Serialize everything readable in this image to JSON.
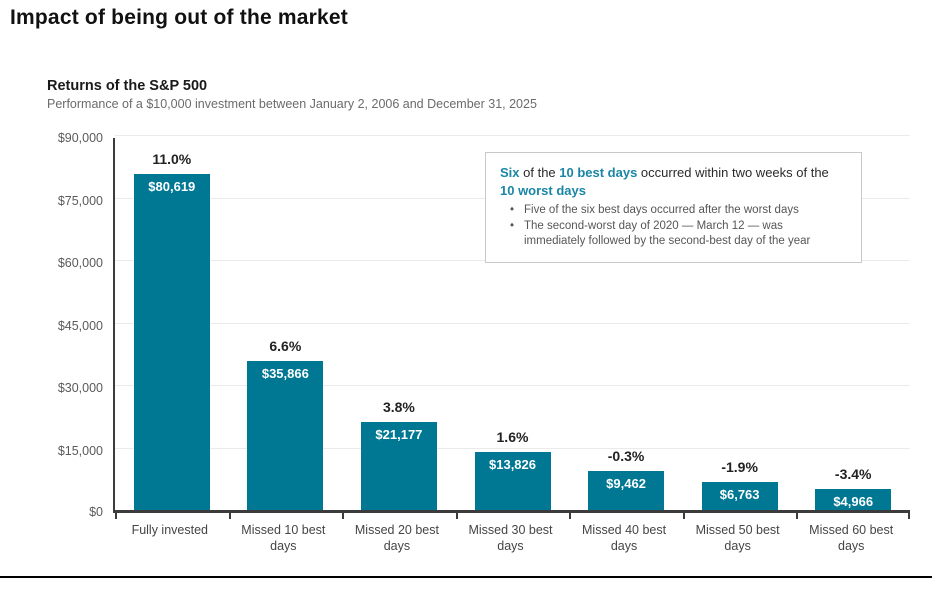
{
  "page_title": "Impact of being out of the market",
  "chart": {
    "subtitle": "Returns of the S&P 500",
    "description": "Performance of a $10,000 investment between January 2, 2006 and December 31, 2025"
  },
  "annotation": {
    "headline_parts": [
      {
        "text": "Six",
        "accent": true
      },
      {
        "text": " of the ",
        "accent": false
      },
      {
        "text": "10 best days",
        "accent": true
      },
      {
        "text": " occurred within two weeks of the ",
        "accent": false
      },
      {
        "text": "10 worst days",
        "accent": true
      }
    ],
    "bullets": [
      "Five of the six best days occurred after the worst days",
      "The second-worst day of 2020 — March 12 — was immediately followed by the second-best day of the year"
    ]
  },
  "chart_data": {
    "type": "bar",
    "title": "Returns of the S&P 500",
    "subtitle": "Performance of a $10,000 investment between January 2, 2006 and December 31, 2025",
    "categories": [
      "Fully invested",
      "Missed 10 best days",
      "Missed 20 best days",
      "Missed 30 best days",
      "Missed 40 best days",
      "Missed 50 best days",
      "Missed 60 best days"
    ],
    "category_lines": [
      [
        "Fully invested"
      ],
      [
        "Missed 10 best",
        "days"
      ],
      [
        "Missed 20 best",
        "days"
      ],
      [
        "Missed 30 best",
        "days"
      ],
      [
        "Missed 40 best",
        "days"
      ],
      [
        "Missed 50 best",
        "days"
      ],
      [
        "Missed 60 best",
        "days"
      ]
    ],
    "values": [
      80619,
      35866,
      21177,
      13826,
      9462,
      6763,
      4966
    ],
    "value_labels": [
      "$80,619",
      "$35,866",
      "$21,177",
      "$13,826",
      "$9,462",
      "$6,763",
      "$4,966"
    ],
    "pct_labels": [
      "11.0%",
      "6.6%",
      "3.8%",
      "1.6%",
      "-0.3%",
      "-1.9%",
      "-3.4%"
    ],
    "ylim": [
      0,
      90000
    ],
    "y_tick_values": [
      0,
      15000,
      30000,
      45000,
      60000,
      75000,
      90000
    ],
    "y_tick_labels": [
      "$0",
      "$15,000",
      "$30,000",
      "$45,000",
      "$60,000",
      "$75,000",
      "$90,000"
    ],
    "grid": true,
    "legend": "none",
    "bar_color": "#007793"
  },
  "colors": {
    "bar": "#007793",
    "accent_text": "#1a86a6",
    "axis": "#3c3c3c",
    "gridline": "#eaeaea",
    "bottom_rule": "#000000"
  }
}
